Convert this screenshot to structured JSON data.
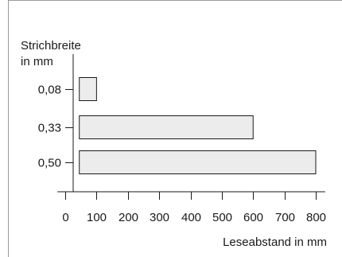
{
  "chart_data": {
    "type": "bar",
    "subtype": "floating-horizontal",
    "ylabel_line1": "Strichbreite",
    "ylabel_line2": "in mm",
    "xlabel": "Leseabstand in mm",
    "categories": [
      "0,08",
      "0,33",
      "0,50"
    ],
    "ranges": [
      {
        "category": "0,08",
        "start": 45,
        "end": 100
      },
      {
        "category": "0,33",
        "start": 45,
        "end": 600
      },
      {
        "category": "0,50",
        "start": 45,
        "end": 800
      }
    ],
    "xlim": [
      -25,
      830
    ],
    "xticks": [
      0,
      100,
      200,
      300,
      400,
      500,
      600,
      700,
      800
    ],
    "xtick_labels": [
      "0",
      "100",
      "200",
      "300",
      "400",
      "500",
      "600",
      "700",
      "800"
    ],
    "bar_fill": "#ececec",
    "bar_stroke": "#1a1a1a",
    "frame_color": "#9a9a9a",
    "grid": false,
    "legend": "none"
  }
}
